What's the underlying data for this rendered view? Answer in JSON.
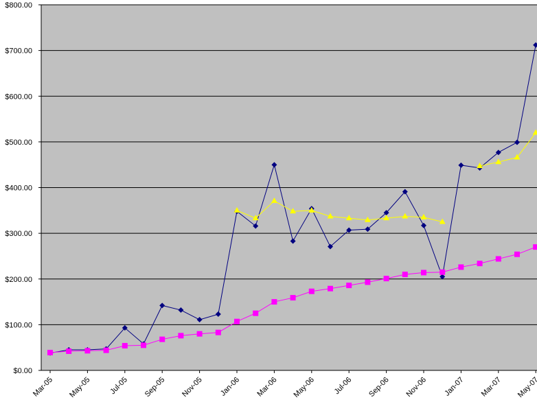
{
  "chart_data": {
    "type": "line",
    "title": "",
    "xlabel": "",
    "ylabel": "",
    "ylim": [
      0,
      800
    ],
    "y_tick_labels": [
      "$0.00",
      "$100.00",
      "$200.00",
      "$300.00",
      "$400.00",
      "$500.00",
      "$600.00",
      "$700.00",
      "$800.00"
    ],
    "x_tick_labels": [
      "Mar-05",
      "May-05",
      "Jul-05",
      "Sep-05",
      "Nov-05",
      "Jan-06",
      "Mar-06",
      "May-06",
      "Jul-06",
      "Sep-06",
      "Nov-06",
      "Jan-07",
      "Mar-07",
      "May-07"
    ],
    "grid": true,
    "legend": "none",
    "background": "#c0c0c0",
    "categories": [
      "Mar-05",
      "Apr-05",
      "May-05",
      "Jun-05",
      "Jul-05",
      "Aug-05",
      "Sep-05",
      "Oct-05",
      "Nov-05",
      "Dec-05",
      "Jan-06",
      "Feb-06",
      "Mar-06",
      "Apr-06",
      "May-06",
      "Jun-06",
      "Jul-06",
      "Aug-06",
      "Sep-06",
      "Oct-06",
      "Nov-06",
      "Dec-06",
      "Jan-07",
      "Feb-07",
      "Mar-07",
      "Apr-07",
      "May-07"
    ],
    "series": [
      {
        "color": "#000080",
        "marker": "diamond",
        "values": [
          38,
          45,
          45,
          47,
          93,
          58,
          142,
          132,
          111,
          123,
          348,
          316,
          450,
          283,
          354,
          271,
          307,
          309,
          345,
          391,
          317,
          205,
          449,
          443,
          477,
          499,
          712
        ]
      },
      {
        "color": "#ff00ff",
        "marker": "square",
        "values": [
          39,
          42,
          43,
          44,
          54,
          55,
          68,
          76,
          80,
          83,
          107,
          125,
          150,
          159,
          173,
          179,
          186,
          193,
          201,
          210,
          214,
          215,
          226,
          234,
          244,
          254,
          270
        ]
      },
      {
        "color": "#ffff00",
        "marker": "triangle",
        "values": [
          null,
          null,
          null,
          null,
          null,
          null,
          null,
          null,
          null,
          null,
          350,
          333,
          371,
          348,
          350,
          337,
          333,
          329,
          333,
          337,
          335,
          325,
          null,
          447,
          456,
          466,
          520
        ]
      }
    ]
  }
}
